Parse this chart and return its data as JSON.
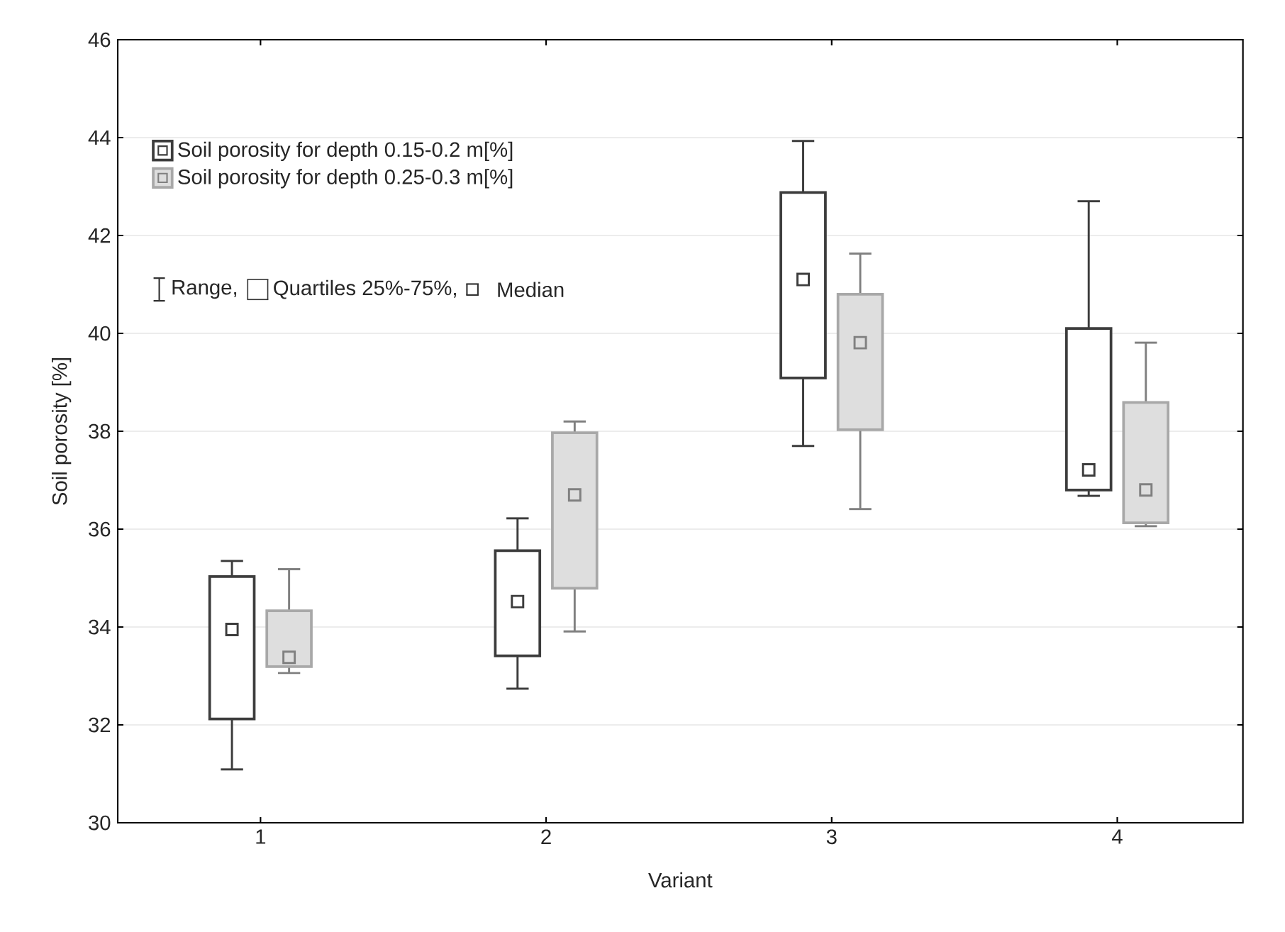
{
  "chart_data": {
    "type": "box",
    "xlabel": "Variant",
    "ylabel": "Soil porosity [%]",
    "categories": [
      "1",
      "2",
      "3",
      "4"
    ],
    "ylim": [
      30,
      46
    ],
    "yticks": [
      30,
      32,
      34,
      36,
      38,
      40,
      42,
      44,
      46
    ],
    "grid": "y",
    "legend": "top left",
    "marker": "square",
    "annotations": [
      "Range,",
      "Quartiles 25%-75%,",
      "Median"
    ],
    "series": [
      {
        "name": "Soil porosity for depth 0.15-0.2 m[%]",
        "color": "#3c3c3c",
        "boxes": [
          {
            "low": 31.09,
            "q1": 32.12,
            "median": 33.95,
            "q3": 35.03,
            "high": 35.35
          },
          {
            "low": 32.74,
            "q1": 33.41,
            "median": 34.52,
            "q3": 35.56,
            "high": 36.22
          },
          {
            "low": 37.7,
            "q1": 39.09,
            "median": 41.1,
            "q3": 42.88,
            "high": 43.93
          },
          {
            "low": 36.68,
            "q1": 36.8,
            "median": 37.21,
            "q3": 40.1,
            "high": 42.7
          }
        ]
      },
      {
        "name": "Soil porosity for depth 0.25-0.3 m[%]",
        "color": "#a8a8a8",
        "boxes": [
          {
            "low": 33.06,
            "q1": 33.19,
            "median": 33.38,
            "q3": 34.33,
            "high": 35.18
          },
          {
            "low": 33.91,
            "q1": 34.79,
            "median": 36.7,
            "q3": 37.97,
            "high": 38.2
          },
          {
            "low": 36.41,
            "q1": 38.03,
            "median": 39.81,
            "q3": 40.8,
            "high": 41.63
          },
          {
            "low": 36.06,
            "q1": 36.13,
            "median": 36.8,
            "q3": 38.59,
            "high": 39.81
          }
        ]
      }
    ]
  }
}
